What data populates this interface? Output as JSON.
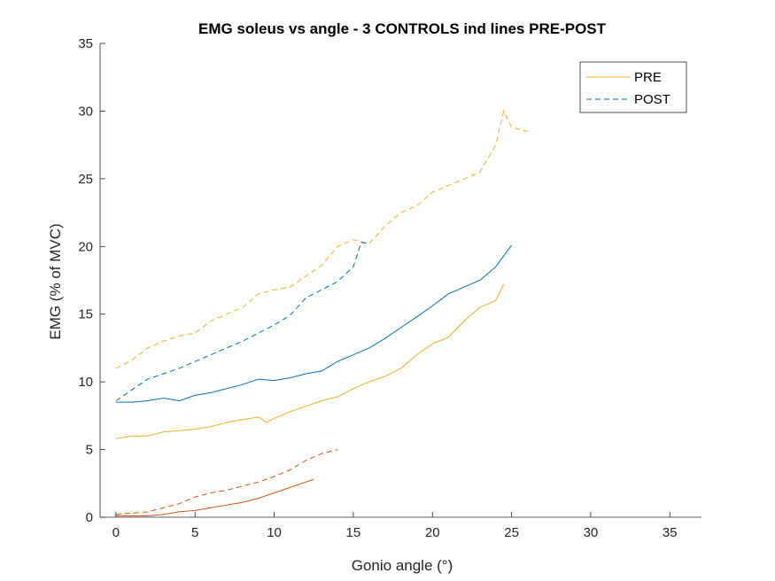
{
  "chart_data": {
    "type": "line",
    "title": "EMG soleus vs angle - 3 CONTROLS ind lines PRE-POST",
    "xlabel": "Gonio angle (°)",
    "ylabel": "EMG (% of MVC)",
    "xlim": [
      -1,
      37
    ],
    "ylim": [
      0,
      35
    ],
    "xticks": [
      0,
      5,
      10,
      15,
      20,
      25,
      30,
      35
    ],
    "yticks": [
      0,
      5,
      10,
      15,
      20,
      25,
      30,
      35
    ],
    "grid": false,
    "legend": {
      "position": "top-right",
      "entries": [
        "PRE",
        "POST"
      ]
    },
    "series": [
      {
        "subject": 1,
        "condition": "PRE",
        "color": "#EDB120",
        "dash": "solid",
        "x": [
          0,
          1,
          2,
          3,
          4,
          5,
          6,
          7,
          8,
          9,
          9.5,
          10,
          11,
          12,
          13,
          14,
          15,
          16,
          17,
          18,
          19,
          20,
          21,
          22,
          23,
          24,
          24.5
        ],
        "y": [
          5.8,
          6.0,
          6.0,
          6.3,
          6.4,
          6.5,
          6.7,
          7.0,
          7.2,
          7.4,
          7.0,
          7.3,
          7.8,
          8.2,
          8.6,
          8.9,
          9.5,
          10.0,
          10.4,
          11.0,
          12.0,
          12.8,
          13.3,
          14.5,
          15.5,
          16.0,
          17.2
        ]
      },
      {
        "subject": 1,
        "condition": "POST",
        "color": "#EDB120",
        "dash": "dashed",
        "x": [
          0,
          1,
          2,
          3,
          4,
          5,
          6,
          7,
          8,
          9,
          10,
          11,
          12,
          13,
          14,
          15,
          16,
          17,
          18,
          19,
          20,
          21,
          22,
          23,
          24,
          24.5,
          25,
          26
        ],
        "y": [
          11.0,
          11.6,
          12.5,
          13.0,
          13.4,
          13.6,
          14.5,
          15.0,
          15.5,
          16.5,
          16.8,
          17.0,
          17.8,
          18.6,
          20.0,
          20.5,
          20.2,
          21.5,
          22.5,
          23.0,
          24.0,
          24.5,
          25.0,
          25.5,
          27.5,
          30.0,
          28.8,
          28.5
        ]
      },
      {
        "subject": 2,
        "condition": "PRE",
        "color": "#0072BD",
        "dash": "solid",
        "x": [
          0,
          1,
          2,
          3,
          4,
          5,
          6,
          7,
          8,
          9,
          10,
          11,
          12,
          13,
          14,
          15,
          16,
          17,
          18,
          19,
          20,
          21,
          22,
          23,
          24,
          25
        ],
        "y": [
          8.5,
          8.5,
          8.6,
          8.8,
          8.6,
          9.0,
          9.2,
          9.5,
          9.8,
          10.2,
          10.1,
          10.3,
          10.6,
          10.8,
          11.5,
          12.0,
          12.5,
          13.2,
          14.0,
          14.8,
          15.6,
          16.5,
          17.0,
          17.5,
          18.5,
          20.1
        ]
      },
      {
        "subject": 2,
        "condition": "POST",
        "color": "#0072BD",
        "dash": "dashed",
        "x": [
          0,
          1,
          2,
          3,
          4,
          5,
          6,
          7,
          8,
          9,
          10,
          11,
          12,
          13,
          14,
          15,
          15.5,
          16
        ],
        "y": [
          8.6,
          9.4,
          10.2,
          10.6,
          11.0,
          11.5,
          12.0,
          12.5,
          13.0,
          13.6,
          14.2,
          14.9,
          16.2,
          16.8,
          17.4,
          18.5,
          20.3,
          20.2
        ]
      },
      {
        "subject": 3,
        "condition": "PRE",
        "color": "#D95319",
        "dash": "solid",
        "x": [
          0,
          1,
          2,
          3,
          4,
          5,
          6,
          7,
          8,
          9,
          10,
          11,
          12,
          12.5
        ],
        "y": [
          0.1,
          0.1,
          0.1,
          0.2,
          0.4,
          0.5,
          0.7,
          0.9,
          1.1,
          1.4,
          1.8,
          2.2,
          2.6,
          2.8
        ]
      },
      {
        "subject": 3,
        "condition": "POST",
        "color": "#D95319",
        "dash": "dashed",
        "x": [
          0,
          1,
          2,
          3,
          4,
          5,
          6,
          7,
          8,
          9,
          10,
          11,
          12,
          13,
          14
        ],
        "y": [
          0.2,
          0.3,
          0.4,
          0.7,
          1.0,
          1.5,
          1.8,
          2.0,
          2.3,
          2.6,
          3.0,
          3.5,
          4.2,
          4.7,
          5.0
        ]
      }
    ]
  }
}
